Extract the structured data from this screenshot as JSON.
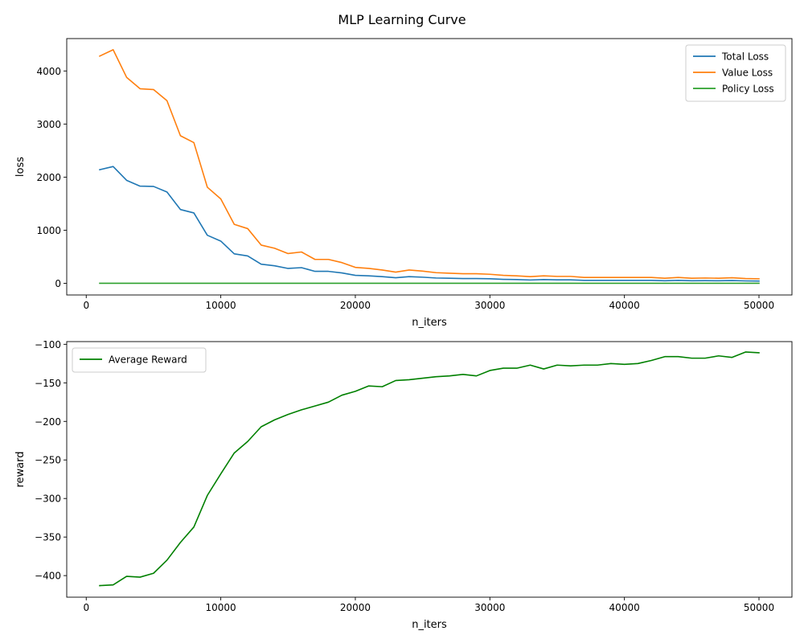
{
  "figure": {
    "title": "MLP Learning Curve"
  },
  "chart_data": [
    {
      "type": "line",
      "xlabel": "n_iters",
      "ylabel": "loss",
      "xlim": [
        -1450,
        52450
      ],
      "ylim": [
        -220,
        4610
      ],
      "xticks": [
        0,
        10000,
        20000,
        30000,
        40000,
        50000
      ],
      "xtick_labels": [
        "0",
        "10000",
        "20000",
        "30000",
        "40000",
        "50000"
      ],
      "yticks": [
        0,
        1000,
        2000,
        3000,
        4000
      ],
      "ytick_labels": [
        "0",
        "1000",
        "2000",
        "3000",
        "4000"
      ],
      "legend_position": "upper-right",
      "grid": false,
      "x": [
        1000,
        2000,
        3000,
        4000,
        5000,
        6000,
        7000,
        8000,
        9000,
        10000,
        11000,
        12000,
        13000,
        14000,
        15000,
        16000,
        17000,
        18000,
        19000,
        20000,
        21000,
        22000,
        23000,
        24000,
        25000,
        26000,
        27000,
        28000,
        29000,
        30000,
        31000,
        32000,
        33000,
        34000,
        35000,
        36000,
        37000,
        38000,
        39000,
        40000,
        41000,
        42000,
        43000,
        44000,
        45000,
        46000,
        47000,
        48000,
        49000,
        50000
      ],
      "series": [
        {
          "name": "Total Loss",
          "color": "#1f77b4",
          "values": [
            2140,
            2200,
            1940,
            1830,
            1825,
            1720,
            1390,
            1325,
            905,
            795,
            555,
            515,
            360,
            330,
            280,
            295,
            225,
            225,
            195,
            150,
            140,
            125,
            105,
            125,
            115,
            100,
            95,
            90,
            90,
            85,
            75,
            70,
            62,
            70,
            65,
            65,
            55,
            55,
            55,
            55,
            55,
            55,
            48,
            55,
            48,
            50,
            48,
            52,
            45,
            42
          ]
        },
        {
          "name": "Value Loss",
          "color": "#ff7f0e",
          "values": [
            4280,
            4400,
            3880,
            3665,
            3650,
            3440,
            2780,
            2650,
            1810,
            1590,
            1110,
            1030,
            720,
            660,
            560,
            590,
            450,
            450,
            390,
            300,
            280,
            250,
            210,
            250,
            230,
            200,
            190,
            180,
            180,
            170,
            150,
            140,
            125,
            140,
            130,
            130,
            110,
            110,
            110,
            110,
            110,
            110,
            95,
            110,
            95,
            100,
            95,
            105,
            90,
            85
          ]
        },
        {
          "name": "Policy Loss",
          "color": "#2ca02c",
          "values": [
            1,
            1,
            1,
            1,
            1,
            1,
            1,
            1,
            1,
            1,
            1,
            1,
            1,
            1,
            1,
            1,
            1,
            1,
            1,
            1,
            1,
            1,
            1,
            1,
            1,
            1,
            1,
            1,
            1,
            1,
            1,
            1,
            1,
            1,
            1,
            1,
            1,
            1,
            1,
            1,
            1,
            1,
            1,
            1,
            1,
            1,
            1,
            1,
            1,
            1
          ]
        }
      ]
    },
    {
      "type": "line",
      "xlabel": "n_iters",
      "ylabel": "reward",
      "xlim": [
        -1450,
        52450
      ],
      "ylim": [
        -428,
        -96.5
      ],
      "xticks": [
        0,
        10000,
        20000,
        30000,
        40000,
        50000
      ],
      "xtick_labels": [
        "0",
        "10000",
        "20000",
        "30000",
        "40000",
        "50000"
      ],
      "yticks": [
        -400,
        -350,
        -300,
        -250,
        -200,
        -150,
        -100
      ],
      "ytick_labels": [
        "−400",
        "−350",
        "−300",
        "−250",
        "−200",
        "−150",
        "−100"
      ],
      "legend_position": "upper-left",
      "grid": false,
      "x": [
        1000,
        2000,
        3000,
        4000,
        5000,
        6000,
        7000,
        8000,
        9000,
        10000,
        11000,
        12000,
        13000,
        14000,
        15000,
        16000,
        17000,
        18000,
        19000,
        20000,
        21000,
        22000,
        23000,
        24000,
        25000,
        26000,
        27000,
        28000,
        29000,
        30000,
        31000,
        32000,
        33000,
        34000,
        35000,
        36000,
        37000,
        38000,
        39000,
        40000,
        41000,
        42000,
        43000,
        44000,
        45000,
        46000,
        47000,
        48000,
        49000,
        50000
      ],
      "series": [
        {
          "name": "Average Reward",
          "color": "#008000",
          "values": [
            -413,
            -412,
            -401,
            -402,
            -397,
            -380,
            -357,
            -337,
            -296,
            -268,
            -241,
            -226,
            -207,
            -198,
            -191,
            -185,
            -180,
            -175,
            -166,
            -161,
            -154,
            -155,
            -147,
            -146,
            -144,
            -142,
            -141,
            -139,
            -141,
            -134,
            -131,
            -131,
            -127,
            -132,
            -127,
            -128,
            -127,
            -127,
            -125,
            -126,
            -125,
            -121,
            -116,
            -116,
            -118,
            -118,
            -115,
            -117,
            -110,
            -111
          ]
        }
      ]
    }
  ]
}
